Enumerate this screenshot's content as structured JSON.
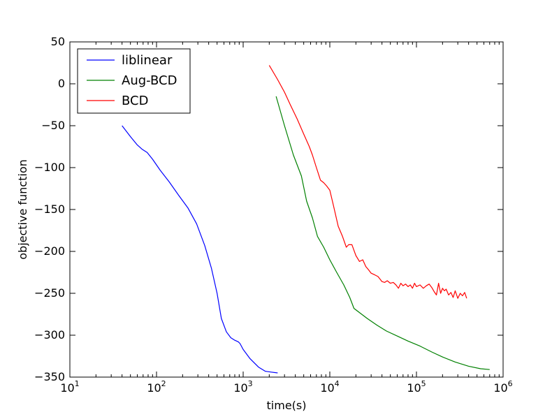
{
  "chart_data": {
    "type": "line",
    "title": "",
    "xlabel": "time(s)",
    "ylabel": "objective function",
    "xscale": "log",
    "xlim": [
      10,
      1000000
    ],
    "ylim": [
      -350,
      50
    ],
    "x_tick_labels": [
      {
        "base": "10",
        "exp": "1"
      },
      {
        "base": "10",
        "exp": "2"
      },
      {
        "base": "10",
        "exp": "3"
      },
      {
        "base": "10",
        "exp": "4"
      },
      {
        "base": "10",
        "exp": "5"
      },
      {
        "base": "10",
        "exp": "6"
      }
    ],
    "y_tick_labels": [
      "50",
      "0",
      "−50",
      "−100",
      "−150",
      "−200",
      "−250",
      "−300",
      "−350"
    ],
    "grid": false,
    "legend_position": "top-left",
    "series": [
      {
        "name": "liblinear",
        "color": "#0000ff",
        "x": [
          40,
          50,
          60,
          68,
          78,
          90,
          110,
          140,
          180,
          230,
          290,
          360,
          430,
          500,
          560,
          640,
          720,
          800,
          880,
          920,
          1000,
          1200,
          1500,
          1800,
          2100,
          2500
        ],
        "y": [
          -50,
          -63,
          -73,
          -78,
          -82,
          -90,
          -103,
          -117,
          -133,
          -148,
          -167,
          -193,
          -220,
          -250,
          -280,
          -296,
          -303,
          -306,
          -308,
          -310,
          -317,
          -328,
          -338,
          -343,
          -344,
          -345
        ]
      },
      {
        "name": "Aug-BCD",
        "color": "#008000",
        "x": [
          2400,
          3000,
          3800,
          4700,
          5400,
          6300,
          7200,
          8500,
          10000,
          12000,
          14500,
          17000,
          19000,
          22000,
          27000,
          35000,
          45000,
          60000,
          80000,
          110000,
          150000,
          200000,
          280000,
          400000,
          550000,
          700000
        ],
        "y": [
          -15,
          -50,
          -85,
          -110,
          -140,
          -160,
          -182,
          -195,
          -210,
          -225,
          -240,
          -255,
          -268,
          -273,
          -280,
          -288,
          -295,
          -301,
          -307,
          -313,
          -320,
          -326,
          -332,
          -337,
          -340,
          -341
        ]
      },
      {
        "name": "BCD",
        "color": "#ff0000",
        "x": [
          2000,
          2500,
          3000,
          3500,
          4200,
          5000,
          5800,
          6300,
          7000,
          7800,
          8500,
          9200,
          10000,
          11000,
          12500,
          14000,
          15500,
          16500,
          18000,
          20000,
          22000,
          24000,
          26000,
          28000,
          30000,
          33000,
          36000,
          40000,
          43000,
          46000,
          50000,
          54000,
          58000,
          62000,
          66000,
          70000,
          75000,
          80000,
          85000,
          90000,
          95000,
          100000,
          110000,
          120000,
          130000,
          140000,
          150000,
          160000,
          170000,
          180000,
          190000,
          200000,
          210000,
          220000,
          235000,
          250000,
          265000,
          280000,
          300000,
          320000,
          340000,
          360000,
          380000
        ],
        "y": [
          22,
          5,
          -10,
          -25,
          -42,
          -60,
          -75,
          -85,
          -100,
          -115,
          -118,
          -122,
          -127,
          -145,
          -170,
          -182,
          -195,
          -192,
          -192,
          -205,
          -212,
          -210,
          -218,
          -222,
          -226,
          -228,
          -230,
          -236,
          -237,
          -235,
          -238,
          -237,
          -240,
          -244,
          -238,
          -241,
          -239,
          -242,
          -240,
          -244,
          -238,
          -242,
          -240,
          -244,
          -241,
          -239,
          -243,
          -248,
          -252,
          -238,
          -250,
          -244,
          -247,
          -245,
          -252,
          -249,
          -255,
          -247,
          -256,
          -250,
          -253,
          -249,
          -256
        ]
      }
    ]
  }
}
